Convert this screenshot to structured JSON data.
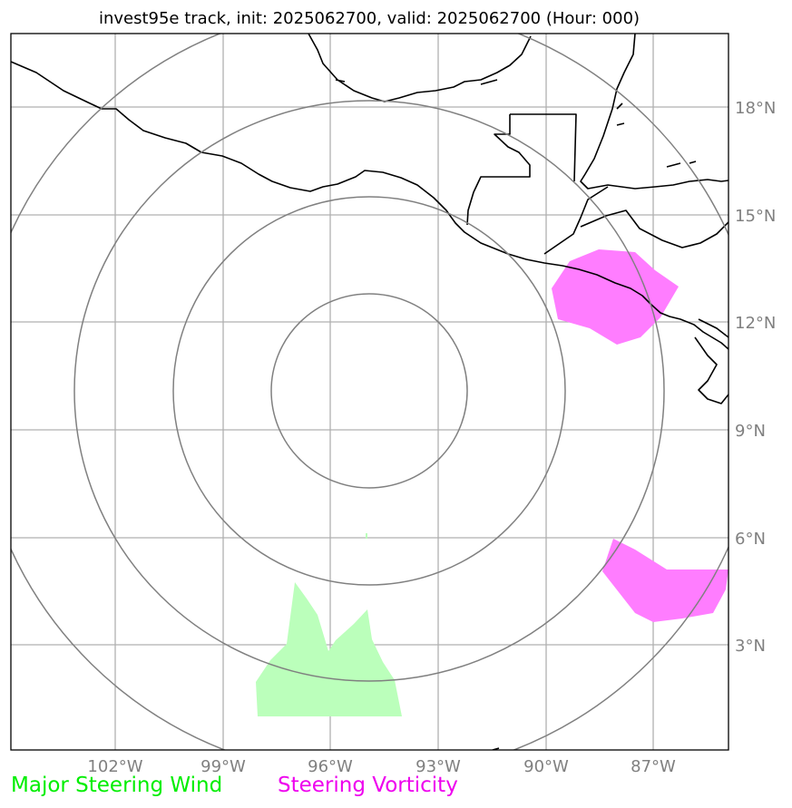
{
  "title": "invest95e track, init: 2025062700, valid: 2025062700 (Hour: 000)",
  "map": {
    "lon_ticks": [
      "102°W",
      "99°W",
      "96°W",
      "93°W",
      "90°W",
      "87°W"
    ],
    "lat_ticks": [
      "18°N",
      "15°N",
      "12°N",
      "9°N",
      "6°N",
      "3°N"
    ],
    "grid": true,
    "range_rings": 4,
    "colors": {
      "grid": "#b0b0b0",
      "rings": "#808080",
      "coastline": "#000000",
      "steering_wind": "#bbffbb",
      "steering_vorticity": "#ff7dff",
      "tick_text": "#808080"
    }
  },
  "legend": {
    "wind_label": "Major Steering Wind",
    "wind_color": "#00ee00",
    "vorticity_label": "Steering Vorticity",
    "vorticity_color": "#ee00ee"
  }
}
